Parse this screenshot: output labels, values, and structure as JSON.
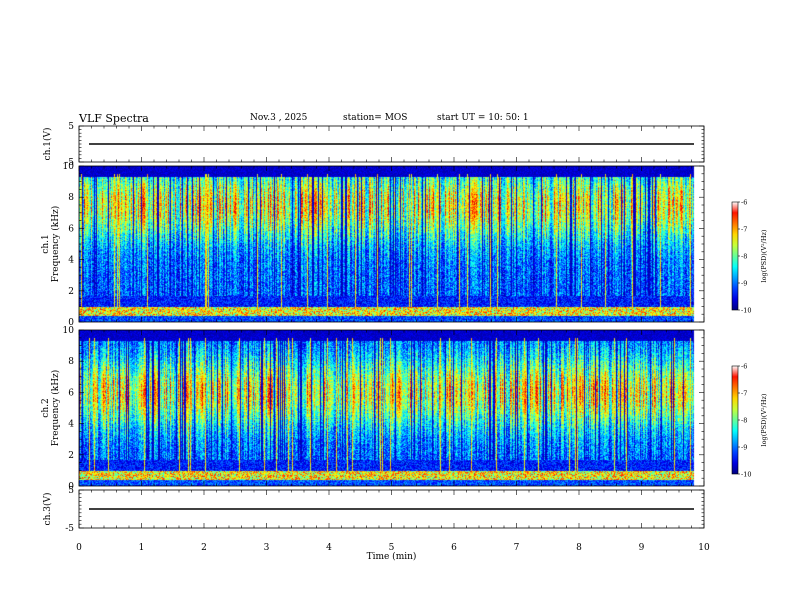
{
  "header": {
    "title": "VLF Spectra",
    "date": "Nov.3 , 2025",
    "station": "station= MOS",
    "start_ut": "start UT = 10: 50: 1"
  },
  "chart_data": {
    "type": "heatmap",
    "title": "VLF Spectra",
    "xlabel": "Time (min)",
    "xlim": [
      0,
      10
    ],
    "xticks": [
      "0",
      "1",
      "2",
      "3",
      "4",
      "5",
      "6",
      "7",
      "8",
      "9",
      "10"
    ],
    "data_end_min": 9.84,
    "panels": [
      {
        "name": "ch1-waveform",
        "ylabel": "ch.1(V)",
        "ylim": [
          -5,
          5
        ],
        "yticks": [
          "5",
          "-5"
        ],
        "baseline_v": 0.0
      },
      {
        "name": "ch1-spectrogram",
        "ylabel": "ch.1 Frequency (kHz)",
        "ylabel_top": "ch.1",
        "ylabel_bottom": "Frequency (kHz)",
        "ylim": [
          0,
          10
        ],
        "yticks": [
          "0",
          "2",
          "4",
          "6",
          "8",
          "10"
        ],
        "colorbar": {
          "label": "log(PSD)(V²/Hz)",
          "range": [
            -10,
            -6
          ],
          "ticks": [
            "-6",
            "-7",
            "-8",
            "-9",
            "-10"
          ]
        },
        "band_peak_khz": 7.5,
        "seed": 7
      },
      {
        "name": "ch2-spectrogram",
        "ylabel": "ch.2 Frequency (kHz)",
        "ylabel_top": "ch.2",
        "ylabel_bottom": "Frequency (kHz)",
        "ylim": [
          0,
          10
        ],
        "yticks": [
          "0",
          "2",
          "4",
          "6",
          "8",
          "10"
        ],
        "colorbar": {
          "label": "log(PSD)(V²/Hz)",
          "range": [
            -10,
            -6
          ],
          "ticks": [
            "-6",
            "-7",
            "-8",
            "-9",
            "-10"
          ]
        },
        "band_peak_khz": 6.0,
        "seed": 19
      },
      {
        "name": "ch3-waveform",
        "ylabel": "ch.3(V)",
        "ylim": [
          -5,
          5
        ],
        "yticks": [
          "5",
          "-5"
        ],
        "baseline_v": 0.0
      }
    ]
  }
}
